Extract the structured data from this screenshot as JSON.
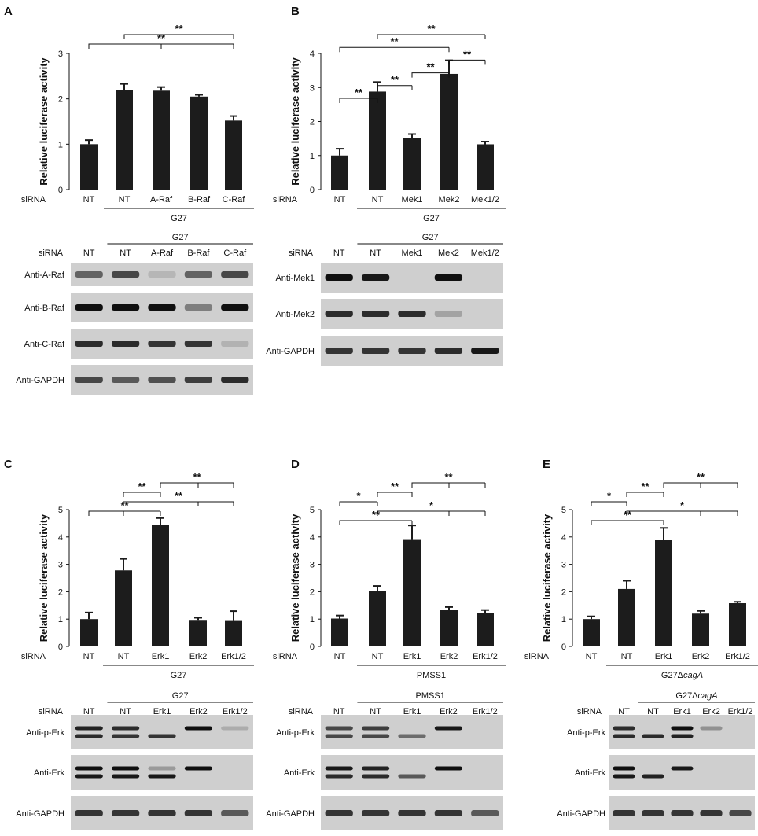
{
  "chart_data": [
    {
      "id": "A",
      "type": "bar",
      "panel_label": "A",
      "ylabel": "Relative luciferase activity",
      "ylim": [
        0,
        3
      ],
      "yticks": [
        0,
        1,
        2,
        3
      ],
      "siRNA_label": "siRNA",
      "categories": [
        "NT",
        "NT",
        "A-Raf",
        "B-Raf",
        "C-Raf"
      ],
      "values": [
        1.0,
        2.2,
        2.18,
        2.05,
        1.52
      ],
      "errors": [
        0.09,
        0.13,
        0.08,
        0.04,
        0.1
      ],
      "group_label": "G27",
      "significance": [
        {
          "label": "**",
          "from": 0,
          "to": [
            2,
            4
          ]
        },
        {
          "label": "**",
          "from": 1,
          "to": [
            4
          ]
        }
      ]
    },
    {
      "id": "B",
      "type": "bar",
      "panel_label": "B",
      "ylabel": "Relative luciferase activity",
      "ylim": [
        0,
        4
      ],
      "yticks": [
        0,
        1,
        2,
        3,
        4
      ],
      "siRNA_label": "siRNA",
      "categories": [
        "NT",
        "NT",
        "Mek1",
        "Mek2",
        "Mek1/2"
      ],
      "values": [
        1.0,
        2.88,
        1.52,
        3.4,
        1.33
      ],
      "errors": [
        0.2,
        0.28,
        0.11,
        0.4,
        0.08
      ],
      "group_label": "G27",
      "significance": [
        {
          "label": "**",
          "from": 0,
          "to": [
            1
          ]
        },
        {
          "label": "**",
          "from": 1,
          "to": [
            2
          ]
        },
        {
          "label": "**",
          "from": 2,
          "to": [
            3
          ]
        },
        {
          "label": "**",
          "from": 3,
          "to": [
            4
          ]
        },
        {
          "label": "**",
          "from": 0,
          "to": [
            3
          ]
        },
        {
          "label": "**",
          "from": 1,
          "to": [
            4
          ]
        }
      ]
    },
    {
      "id": "C",
      "type": "bar",
      "panel_label": "C",
      "ylabel": "Relative luciferase activity",
      "ylim": [
        0,
        5
      ],
      "yticks": [
        0,
        1,
        2,
        3,
        4,
        5
      ],
      "siRNA_label": "siRNA",
      "categories": [
        "NT",
        "NT",
        "Erk1",
        "Erk2",
        "Erk1/2"
      ],
      "values": [
        1.0,
        2.78,
        4.44,
        0.97,
        0.96
      ],
      "errors": [
        0.24,
        0.42,
        0.25,
        0.08,
        0.33
      ],
      "group_label": "G27",
      "group_label_italic": "",
      "significance": [
        {
          "label": "**",
          "from": 0,
          "to": [
            1,
            2
          ]
        },
        {
          "label": "**",
          "from": 1,
          "to": [
            3,
            4
          ]
        },
        {
          "label": "**",
          "from": 1,
          "to": [
            2
          ]
        },
        {
          "label": "**",
          "from": 2,
          "to": [
            3,
            4
          ]
        }
      ]
    },
    {
      "id": "D",
      "type": "bar",
      "panel_label": "D",
      "ylabel": "Relative luciferase activity",
      "ylim": [
        0,
        5
      ],
      "yticks": [
        0,
        1,
        2,
        3,
        4,
        5
      ],
      "siRNA_label": "siRNA",
      "categories": [
        "NT",
        "NT",
        "Erk1",
        "Erk2",
        "Erk1/2"
      ],
      "values": [
        1.02,
        2.04,
        3.92,
        1.34,
        1.23
      ],
      "errors": [
        0.11,
        0.17,
        0.5,
        0.1,
        0.1
      ],
      "group_label": "PMSS1",
      "group_label_italic": "",
      "significance": [
        {
          "label": "**",
          "from": 0,
          "to": [
            2
          ]
        },
        {
          "label": "*",
          "from": 1,
          "to": [
            3,
            4
          ]
        },
        {
          "label": "*",
          "from": 0,
          "to": [
            1
          ]
        },
        {
          "label": "**",
          "from": 1,
          "to": [
            2
          ]
        },
        {
          "label": "**",
          "from": 2,
          "to": [
            3,
            4
          ]
        }
      ]
    },
    {
      "id": "E",
      "type": "bar",
      "panel_label": "E",
      "ylabel": "Relative luciferase activity",
      "ylim": [
        0,
        5
      ],
      "yticks": [
        0,
        1,
        2,
        3,
        4,
        5
      ],
      "siRNA_label": "siRNA",
      "categories": [
        "NT",
        "NT",
        "Erk1",
        "Erk2",
        "Erk1/2"
      ],
      "values": [
        1.0,
        2.1,
        3.88,
        1.2,
        1.58
      ],
      "errors": [
        0.1,
        0.3,
        0.45,
        0.1,
        0.05
      ],
      "group_label": "G27Δ",
      "group_label_italic": "cagA",
      "significance": [
        {
          "label": "**",
          "from": 0,
          "to": [
            2
          ]
        },
        {
          "label": "*",
          "from": 1,
          "to": [
            3,
            4
          ]
        },
        {
          "label": "*",
          "from": 0,
          "to": [
            1
          ]
        },
        {
          "label": "**",
          "from": 1,
          "to": [
            2
          ]
        },
        {
          "label": "**",
          "from": 2,
          "to": [
            3,
            4
          ]
        }
      ]
    }
  ],
  "blots": {
    "A": {
      "siRNA_label": "siRNA",
      "lanes": [
        "NT",
        "NT",
        "A-Raf",
        "B-Raf",
        "C-Raf"
      ],
      "group_label": "G27",
      "group_label_italic": "",
      "rows": [
        {
          "label": "Anti-A-Raf",
          "bands": [
            [
              0.55
            ],
            [
              0.7
            ],
            [
              0.1
            ],
            [
              0.55
            ],
            [
              0.7
            ]
          ]
        },
        {
          "label": "Anti-B-Raf",
          "bands": [
            [
              1.0
            ],
            [
              1.0
            ],
            [
              1.0
            ],
            [
              0.4
            ],
            [
              1.0
            ]
          ]
        },
        {
          "label": "Anti-C-Raf",
          "bands": [
            [
              0.85
            ],
            [
              0.85
            ],
            [
              0.8
            ],
            [
              0.8
            ],
            [
              0.12
            ]
          ]
        },
        {
          "label": "Anti-GAPDH",
          "bands": [
            [
              0.7
            ],
            [
              0.6
            ],
            [
              0.65
            ],
            [
              0.75
            ],
            [
              0.85
            ]
          ]
        }
      ]
    },
    "B": {
      "siRNA_label": "siRNA",
      "lanes": [
        "NT",
        "NT",
        "Mek1",
        "Mek2",
        "Mek1/2"
      ],
      "group_label": "G27",
      "group_label_italic": "",
      "rows": [
        {
          "label": "Anti-Mek1",
          "bands": [
            [
              1.0
            ],
            [
              0.95
            ],
            [
              0.0
            ],
            [
              1.0
            ],
            [
              0.0
            ]
          ]
        },
        {
          "label": "Anti-Mek2",
          "bands": [
            [
              0.85
            ],
            [
              0.85
            ],
            [
              0.85
            ],
            [
              0.2
            ],
            [
              0.0
            ]
          ]
        },
        {
          "label": "Anti-GAPDH",
          "bands": [
            [
              0.8
            ],
            [
              0.8
            ],
            [
              0.8
            ],
            [
              0.85
            ],
            [
              0.95
            ]
          ]
        }
      ]
    },
    "C": {
      "siRNA_label": "siRNA",
      "lanes": [
        "NT",
        "NT",
        "Erk1",
        "Erk2",
        "Erk1/2"
      ],
      "group_label": "G27",
      "group_label_italic": "",
      "rows": [
        {
          "label": "Anti-p-Erk",
          "bands": [
            [
              0.9,
              0.85
            ],
            [
              0.85,
              0.8
            ],
            [
              0.0,
              0.8
            ],
            [
              1.0,
              0.0
            ],
            [
              0.15,
              0.0
            ]
          ]
        },
        {
          "label": "Anti-Erk",
          "bands": [
            [
              1.0,
              0.95
            ],
            [
              1.0,
              0.95
            ],
            [
              0.25,
              0.95
            ],
            [
              1.0,
              0.0
            ],
            [
              0.0,
              0.0
            ]
          ]
        },
        {
          "label": "Anti-GAPDH",
          "bands": [
            [
              0.8
            ],
            [
              0.8
            ],
            [
              0.8
            ],
            [
              0.8
            ],
            [
              0.6
            ]
          ]
        }
      ]
    },
    "D": {
      "siRNA_label": "siRNA",
      "lanes": [
        "NT",
        "NT",
        "Erk1",
        "Erk2",
        "Erk1/2"
      ],
      "group_label": "PMSS1",
      "group_label_italic": "",
      "rows": [
        {
          "label": "Anti-p-Erk",
          "bands": [
            [
              0.7,
              0.7
            ],
            [
              0.75,
              0.7
            ],
            [
              0.0,
              0.5
            ],
            [
              0.95,
              0.0
            ],
            [
              0.0,
              0.0
            ]
          ]
        },
        {
          "label": "Anti-Erk",
          "bands": [
            [
              0.95,
              0.85
            ],
            [
              0.9,
              0.85
            ],
            [
              0.0,
              0.6
            ],
            [
              1.0,
              0.0
            ],
            [
              0.0,
              0.0
            ]
          ]
        },
        {
          "label": "Anti-GAPDH",
          "bands": [
            [
              0.8
            ],
            [
              0.8
            ],
            [
              0.8
            ],
            [
              0.8
            ],
            [
              0.6
            ]
          ]
        }
      ]
    },
    "E": {
      "siRNA_label": "siRNA",
      "lanes": [
        "NT",
        "NT",
        "Erk1",
        "Erk2",
        "Erk1/2"
      ],
      "group_label": "G27Δ",
      "group_label_italic": "cagA",
      "rows": [
        {
          "label": "Anti-p-Erk",
          "bands": [
            [
              0.85,
              0.85
            ],
            [
              0.0,
              0.85
            ],
            [
              1.0,
              0.9
            ],
            [
              0.3,
              0.0
            ],
            [
              0.0,
              0.0
            ]
          ]
        },
        {
          "label": "Anti-Erk",
          "bands": [
            [
              1.0,
              0.95
            ],
            [
              0.0,
              0.9
            ],
            [
              0.95,
              0.0
            ],
            [
              0.0,
              0.0
            ],
            [
              0.0,
              0.0
            ]
          ]
        },
        {
          "label": "Anti-GAPDH",
          "bands": [
            [
              0.8
            ],
            [
              0.8
            ],
            [
              0.8
            ],
            [
              0.8
            ],
            [
              0.7
            ]
          ]
        }
      ]
    }
  }
}
